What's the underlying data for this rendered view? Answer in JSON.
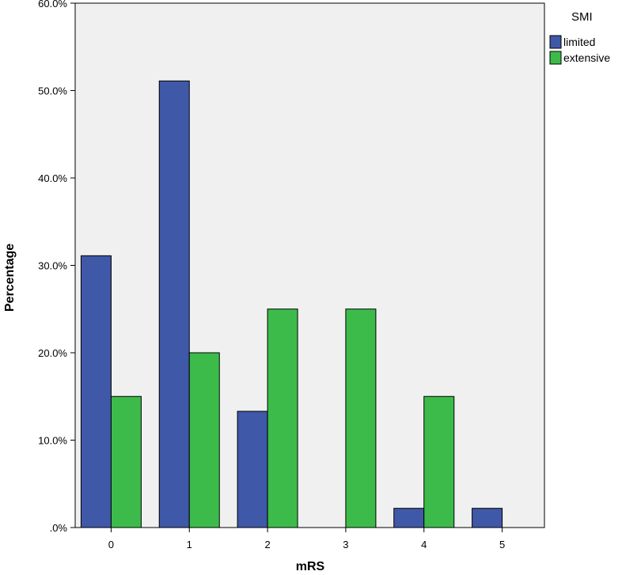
{
  "chart_data": {
    "type": "bar",
    "xlabel": "mRS",
    "ylabel": "Percentage",
    "categories": [
      "0",
      "1",
      "2",
      "3",
      "4",
      "5"
    ],
    "y_ticks": [
      ".0%",
      "10.0%",
      "20.0%",
      "30.0%",
      "40.0%",
      "50.0%",
      "60.0%"
    ],
    "ylim": [
      0,
      0.6
    ],
    "grid": false,
    "legend": {
      "title": "SMI",
      "position": "top-right"
    },
    "series": [
      {
        "name": "limited",
        "color": "#3f58a8",
        "values": [
          0.311,
          0.511,
          0.133,
          0.0,
          0.022,
          0.022
        ]
      },
      {
        "name": "extensive",
        "color": "#3dbb4a",
        "values": [
          0.15,
          0.2,
          0.25,
          0.25,
          0.15,
          0.0
        ]
      }
    ],
    "plot_background": "#f0f0f0"
  }
}
